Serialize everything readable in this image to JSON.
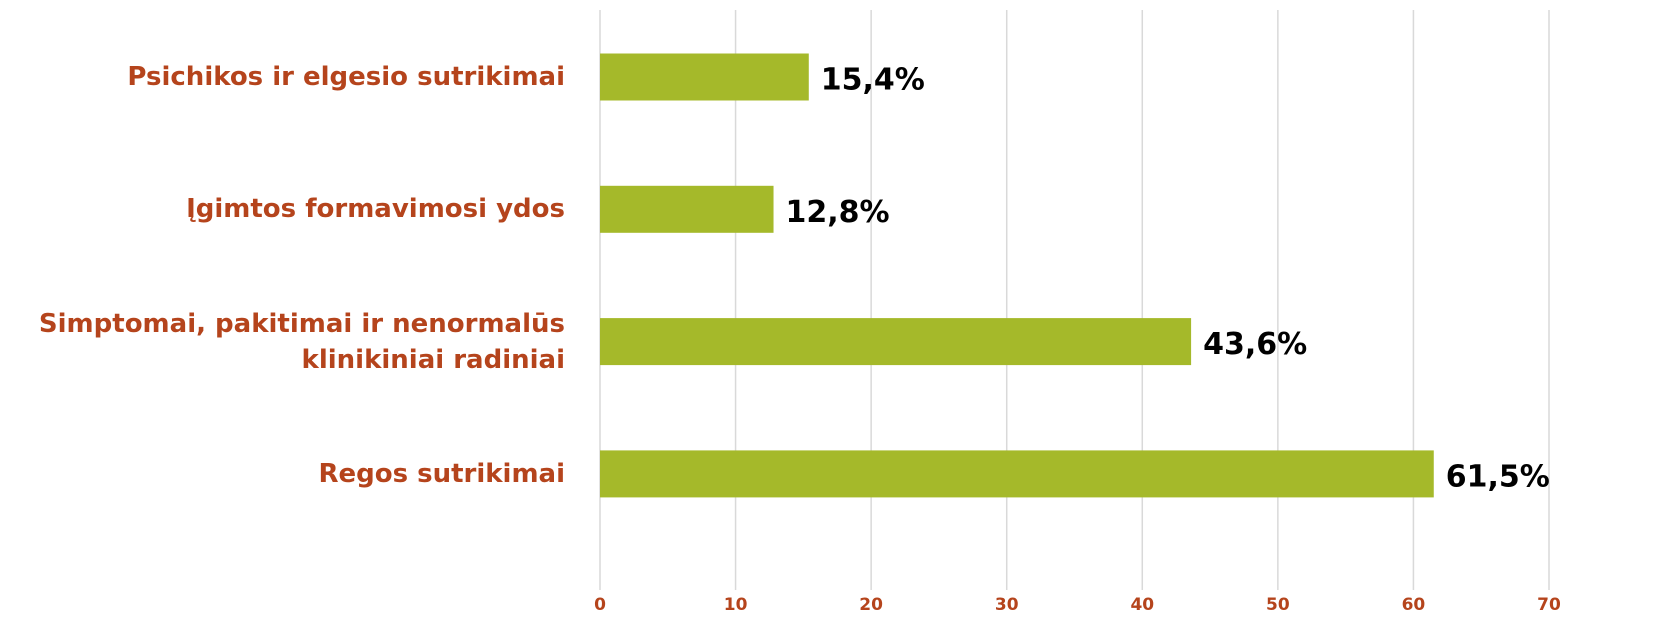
{
  "chart_data": {
    "type": "bar",
    "orientation": "horizontal",
    "categories": [
      "Psichikos ir elgesio sutrikimai",
      "Įgimtos formavimosi ydos",
      "Simptomai, pakitimai ir nenormalūs klinikiniai radiniai",
      "Regos sutrikimai"
    ],
    "values": [
      15.4,
      12.8,
      43.6,
      61.5
    ],
    "value_labels": [
      "15,4%",
      "12,8%",
      "43,6%",
      "61,5%"
    ],
    "color": "#a5b92a",
    "xlim": [
      0,
      70
    ],
    "xticks": [
      0,
      10,
      20,
      30,
      40,
      50,
      60,
      70
    ],
    "grid": true
  }
}
